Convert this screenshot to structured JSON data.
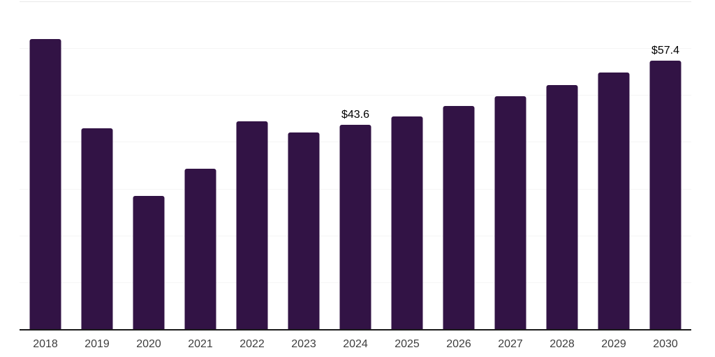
{
  "chart_data": {
    "type": "bar",
    "title": "",
    "xlabel": "",
    "ylabel": "",
    "categories": [
      "2018",
      "2019",
      "2020",
      "2021",
      "2022",
      "2023",
      "2024",
      "2025",
      "2026",
      "2027",
      "2028",
      "2029",
      "2030"
    ],
    "values": [
      62.0,
      42.9,
      28.5,
      34.3,
      44.4,
      42.0,
      43.6,
      45.5,
      47.6,
      49.7,
      52.2,
      54.8,
      57.4
    ],
    "point_labels": [
      "",
      "",
      "",
      "",
      "",
      "",
      "$43.6",
      "",
      "",
      "",
      "",
      "",
      "$57.4"
    ],
    "ylim": [
      0,
      70
    ],
    "grid_step": 10,
    "grid": "horizontal faint lines, no y tick labels",
    "legend_position": "none",
    "colors": {
      "bar": "#321345",
      "axis_line": "#1a1a1a",
      "gridline": "#f5f5f5",
      "top_gridline": "#e8e8e8",
      "tick_label": "#3d3d3d",
      "point_label": "#000000",
      "background": "#ffffff"
    }
  }
}
